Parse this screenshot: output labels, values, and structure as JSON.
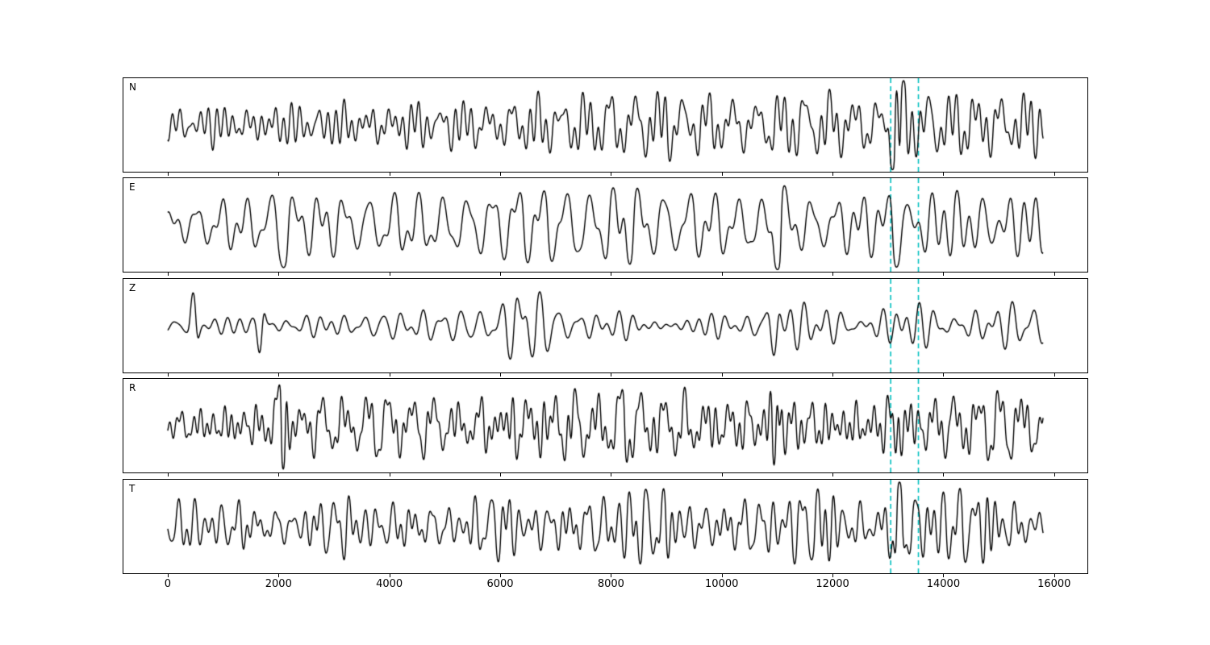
{
  "chart_data": {
    "type": "line",
    "description": "Five stacked seismogram waveform traces (components N, E, Z, R, T) with two dashed cyan vertical marker lines near x=13050 and x=13550",
    "title": "",
    "xlabel": "",
    "ylabel": "",
    "xlim": [
      -800,
      16600
    ],
    "x_ticks": [
      0,
      2000,
      4000,
      6000,
      8000,
      10000,
      12000,
      14000,
      16000
    ],
    "x_tick_labels": [
      "0",
      "2000",
      "4000",
      "6000",
      "8000",
      "10000",
      "12000",
      "14000",
      "16000"
    ],
    "trace_range": [
      0,
      15800
    ],
    "trace_color": "#000000",
    "background": "#ffffff",
    "grid": false,
    "legend": "none",
    "vlines": {
      "positions": [
        13050,
        13550
      ],
      "color": "#00bfbf",
      "dash": [
        6,
        4
      ]
    },
    "panels": [
      {
        "label": "N",
        "envelope": [
          [
            0,
            0.18
          ],
          [
            300,
            0.22
          ],
          [
            1000,
            0.25
          ],
          [
            2000,
            0.28
          ],
          [
            3000,
            0.25
          ],
          [
            3500,
            0.3
          ],
          [
            4000,
            0.28
          ],
          [
            5000,
            0.27
          ],
          [
            6000,
            0.28
          ],
          [
            6500,
            0.33
          ],
          [
            7000,
            0.3
          ],
          [
            7500,
            0.32
          ],
          [
            8000,
            0.4
          ],
          [
            8300,
            0.42
          ],
          [
            8700,
            0.35
          ],
          [
            9000,
            0.38
          ],
          [
            9500,
            0.32
          ],
          [
            10000,
            0.3
          ],
          [
            10500,
            0.28
          ],
          [
            11000,
            0.3
          ],
          [
            11700,
            0.38
          ],
          [
            12000,
            0.35
          ],
          [
            12500,
            0.3
          ],
          [
            12800,
            0.28
          ],
          [
            13400,
            0.35
          ],
          [
            13800,
            0.4
          ],
          [
            14200,
            0.38
          ],
          [
            14800,
            0.42
          ],
          [
            15300,
            0.4
          ],
          [
            15800,
            0.3
          ]
        ],
        "spikes": [
          {
            "x": 13150,
            "a": 0.95,
            "w": 90
          }
        ]
      },
      {
        "label": "E",
        "envelope": [
          [
            0,
            0.2
          ],
          [
            500,
            0.3
          ],
          [
            1000,
            0.35
          ],
          [
            1500,
            0.33
          ],
          [
            2300,
            0.38
          ],
          [
            2600,
            0.35
          ],
          [
            3000,
            0.38
          ],
          [
            3500,
            0.35
          ],
          [
            4000,
            0.4
          ],
          [
            4500,
            0.38
          ],
          [
            5000,
            0.35
          ],
          [
            5500,
            0.38
          ],
          [
            6000,
            0.45
          ],
          [
            6300,
            0.55
          ],
          [
            6700,
            0.5
          ],
          [
            7000,
            0.55
          ],
          [
            7300,
            0.5
          ],
          [
            7700,
            0.45
          ],
          [
            8000,
            0.5
          ],
          [
            8300,
            0.6
          ],
          [
            8600,
            0.45
          ],
          [
            9000,
            0.42
          ],
          [
            9500,
            0.45
          ],
          [
            10000,
            0.4
          ],
          [
            10500,
            0.38
          ],
          [
            11300,
            0.4
          ],
          [
            11700,
            0.38
          ],
          [
            12000,
            0.4
          ],
          [
            12500,
            0.38
          ],
          [
            13000,
            0.45
          ],
          [
            13600,
            0.4
          ],
          [
            14000,
            0.38
          ],
          [
            14500,
            0.42
          ],
          [
            15000,
            0.4
          ],
          [
            15500,
            0.38
          ],
          [
            15800,
            0.3
          ]
        ],
        "spikes": [
          {
            "x": 2050,
            "a": 0.85,
            "w": 100
          },
          {
            "x": 11000,
            "a": 0.9,
            "w": 90
          },
          {
            "x": 13150,
            "a": 0.65,
            "w": 80
          }
        ]
      },
      {
        "label": "Z",
        "envelope": [
          [
            0,
            0.1
          ],
          [
            300,
            0.12
          ],
          [
            700,
            0.12
          ],
          [
            1000,
            0.12
          ],
          [
            1400,
            0.12
          ],
          [
            2000,
            0.15
          ],
          [
            2500,
            0.13
          ],
          [
            3000,
            0.12
          ],
          [
            3500,
            0.13
          ],
          [
            4000,
            0.12
          ],
          [
            4500,
            0.14
          ],
          [
            5000,
            0.13
          ],
          [
            5500,
            0.12
          ],
          [
            6000,
            0.2
          ],
          [
            6300,
            0.45
          ],
          [
            6600,
            0.35
          ],
          [
            7000,
            0.25
          ],
          [
            7500,
            0.18
          ],
          [
            8000,
            0.15
          ],
          [
            8500,
            0.16
          ],
          [
            9000,
            0.15
          ],
          [
            9500,
            0.14
          ],
          [
            10000,
            0.16
          ],
          [
            10400,
            0.13
          ],
          [
            10800,
            0.25
          ],
          [
            11200,
            0.3
          ],
          [
            11600,
            0.25
          ],
          [
            12000,
            0.22
          ],
          [
            12500,
            0.2
          ],
          [
            13000,
            0.25
          ],
          [
            13500,
            0.28
          ],
          [
            14000,
            0.3
          ],
          [
            14500,
            0.22
          ],
          [
            15000,
            0.2
          ],
          [
            15500,
            0.22
          ],
          [
            15800,
            0.25
          ]
        ],
        "spikes": [
          {
            "x": 480,
            "a": 0.8,
            "w": 60
          },
          {
            "x": 1700,
            "a": 0.95,
            "w": 60
          },
          {
            "x": 10950,
            "a": 0.55,
            "w": 80
          }
        ]
      },
      {
        "label": "R",
        "envelope": [
          [
            0,
            0.15
          ],
          [
            500,
            0.25
          ],
          [
            1000,
            0.3
          ],
          [
            1500,
            0.3
          ],
          [
            2300,
            0.33
          ],
          [
            3000,
            0.33
          ],
          [
            3500,
            0.3
          ],
          [
            4000,
            0.35
          ],
          [
            4500,
            0.33
          ],
          [
            5000,
            0.3
          ],
          [
            5500,
            0.33
          ],
          [
            6000,
            0.42
          ],
          [
            6300,
            0.5
          ],
          [
            6700,
            0.48
          ],
          [
            7000,
            0.52
          ],
          [
            7300,
            0.45
          ],
          [
            7700,
            0.4
          ],
          [
            8000,
            0.42
          ],
          [
            8300,
            0.5
          ],
          [
            8700,
            0.4
          ],
          [
            9000,
            0.4
          ],
          [
            9500,
            0.42
          ],
          [
            10000,
            0.38
          ],
          [
            10500,
            0.35
          ],
          [
            11400,
            0.38
          ],
          [
            12000,
            0.36
          ],
          [
            12500,
            0.34
          ],
          [
            13000,
            0.4
          ],
          [
            13600,
            0.38
          ],
          [
            14000,
            0.36
          ],
          [
            14500,
            0.42
          ],
          [
            15000,
            0.4
          ],
          [
            15500,
            0.38
          ],
          [
            15800,
            0.3
          ]
        ],
        "spikes": [
          {
            "x": 2050,
            "a": 0.8,
            "w": 100
          },
          {
            "x": 11000,
            "a": 0.92,
            "w": 90
          },
          {
            "x": 13150,
            "a": 0.6,
            "w": 80
          }
        ]
      },
      {
        "label": "T",
        "envelope": [
          [
            0,
            0.2
          ],
          [
            500,
            0.28
          ],
          [
            1000,
            0.3
          ],
          [
            2000,
            0.3
          ],
          [
            2500,
            0.28
          ],
          [
            3000,
            0.3
          ],
          [
            3500,
            0.32
          ],
          [
            4000,
            0.3
          ],
          [
            4500,
            0.32
          ],
          [
            5000,
            0.3
          ],
          [
            5500,
            0.32
          ],
          [
            6000,
            0.35
          ],
          [
            6500,
            0.33
          ],
          [
            7000,
            0.35
          ],
          [
            7500,
            0.38
          ],
          [
            8000,
            0.5
          ],
          [
            8300,
            0.55
          ],
          [
            8700,
            0.45
          ],
          [
            9000,
            0.4
          ],
          [
            9500,
            0.38
          ],
          [
            10000,
            0.35
          ],
          [
            10500,
            0.38
          ],
          [
            11000,
            0.4
          ],
          [
            11500,
            0.42
          ],
          [
            11900,
            0.5
          ],
          [
            12200,
            0.45
          ],
          [
            12600,
            0.4
          ],
          [
            13000,
            0.42
          ],
          [
            13500,
            0.45
          ],
          [
            14000,
            0.5
          ],
          [
            14500,
            0.45
          ],
          [
            15000,
            0.48
          ],
          [
            15500,
            0.42
          ],
          [
            15800,
            0.32
          ]
        ],
        "spikes": [
          {
            "x": 13150,
            "a": 0.6,
            "w": 90
          }
        ]
      }
    ],
    "panel_tops": [
      96,
      220,
      345,
      469,
      594
    ]
  }
}
